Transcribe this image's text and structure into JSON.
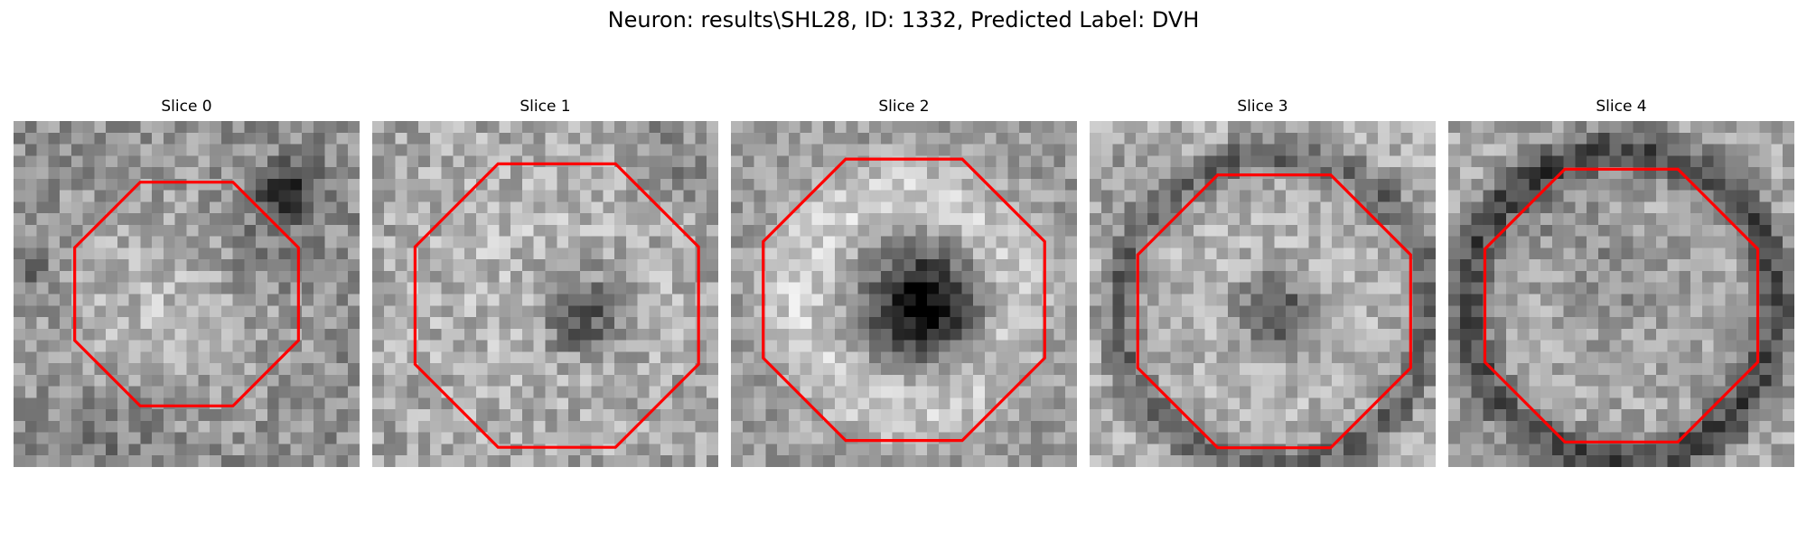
{
  "figure": {
    "title": "Neuron: results\\SHL28, ID: 1332, Predicted Label: DVH"
  },
  "colors": {
    "background": "#ffffff",
    "contour": "#ff0000",
    "image_colormap": "gray"
  },
  "slices": [
    {
      "title": "Slice 0",
      "grid": 30,
      "center": [
        15,
        15
      ],
      "contour_radius": 10.5,
      "image_features": "bright oval with dark blob at upper right"
    },
    {
      "title": "Slice 1",
      "grid": 30,
      "center": [
        16,
        16
      ],
      "contour_radius": 13.3,
      "image_features": "bright ring with dark core at center right"
    },
    {
      "title": "Slice 2",
      "grid": 30,
      "center": [
        15,
        15.5
      ],
      "contour_radius": 13.2,
      "image_features": "bright ring with large dark core"
    },
    {
      "title": "Slice 3",
      "grid": 30,
      "center": [
        16,
        16.5
      ],
      "contour_radius": 12.8,
      "image_features": "dark ring with small dark core"
    },
    {
      "title": "Slice 4",
      "grid": 30,
      "center": [
        15,
        16
      ],
      "contour_radius": 12.8,
      "image_features": "dark rim around bright interior"
    }
  ]
}
